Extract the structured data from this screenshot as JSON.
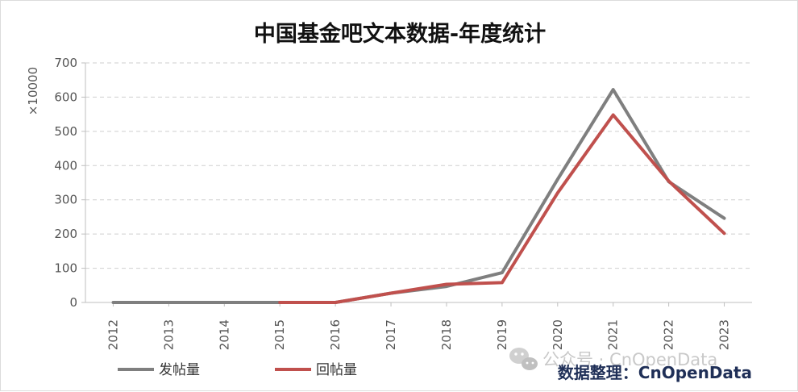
{
  "chart_data": {
    "type": "line",
    "title": "中国基金吧文本数据-年度统计",
    "ylabel": "×10000",
    "xlabel": "",
    "categories": [
      "2012",
      "2013",
      "2014",
      "2015",
      "2016",
      "2017",
      "2018",
      "2019",
      "2020",
      "2021",
      "2022",
      "2023"
    ],
    "ylim": [
      0,
      700
    ],
    "yticks": [
      "0",
      "100",
      "200",
      "300",
      "400",
      "500",
      "600",
      "700"
    ],
    "grid": true,
    "legend_position": "bottom-left",
    "series": [
      {
        "name": "发帖量",
        "color": "#7f7f7f",
        "values": [
          0,
          0,
          0,
          0,
          0,
          27,
          47,
          87,
          360,
          622,
          353,
          246
        ]
      },
      {
        "name": "回帖量",
        "color": "#c0504d",
        "values": [
          null,
          null,
          null,
          0,
          0,
          27,
          53,
          58,
          320,
          548,
          355,
          202
        ]
      }
    ],
    "source_label": "数据整理：CnOpenData",
    "watermark": "公众号 · CnOpenData",
    "watermark_icon": "wechat-icon"
  }
}
